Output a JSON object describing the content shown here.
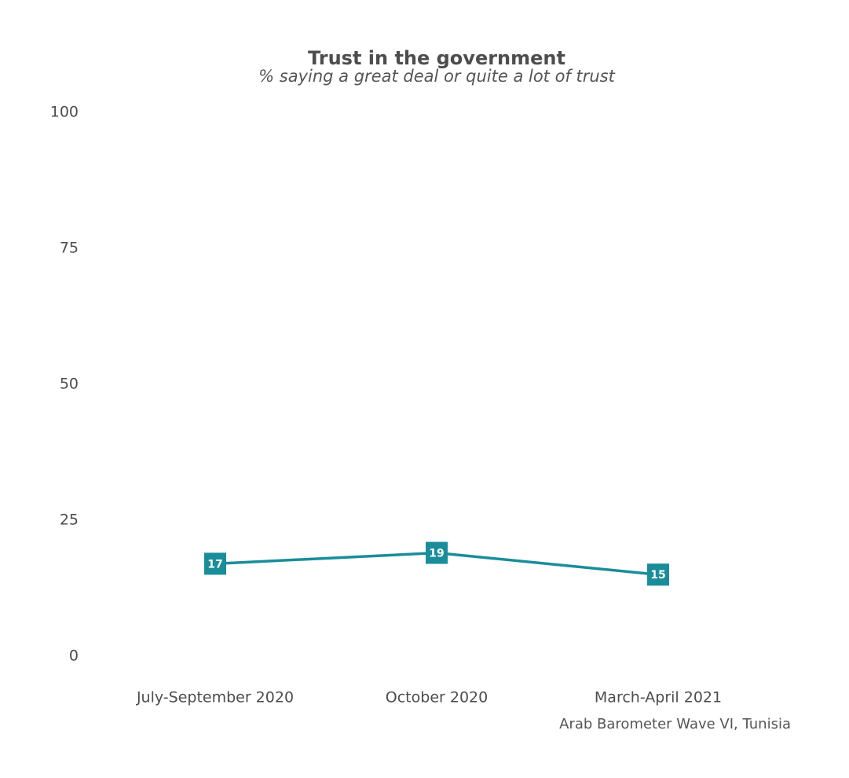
{
  "chart_data": {
    "type": "line",
    "title": "Trust in the government",
    "subtitle": "% saying a great deal or quite a lot of trust",
    "xlabel": "",
    "ylabel": "",
    "categories": [
      "July-September 2020",
      "October 2020",
      "March-April 2021"
    ],
    "series": [
      {
        "values": [
          17,
          19,
          15
        ],
        "color": "#1a8d9a"
      }
    ],
    "ylim": [
      0,
      100
    ],
    "yticks": [
      0,
      25,
      50,
      75,
      100
    ],
    "grid": false,
    "legend": "none",
    "caption": "Arab Barometer Wave VI, Tunisia"
  }
}
